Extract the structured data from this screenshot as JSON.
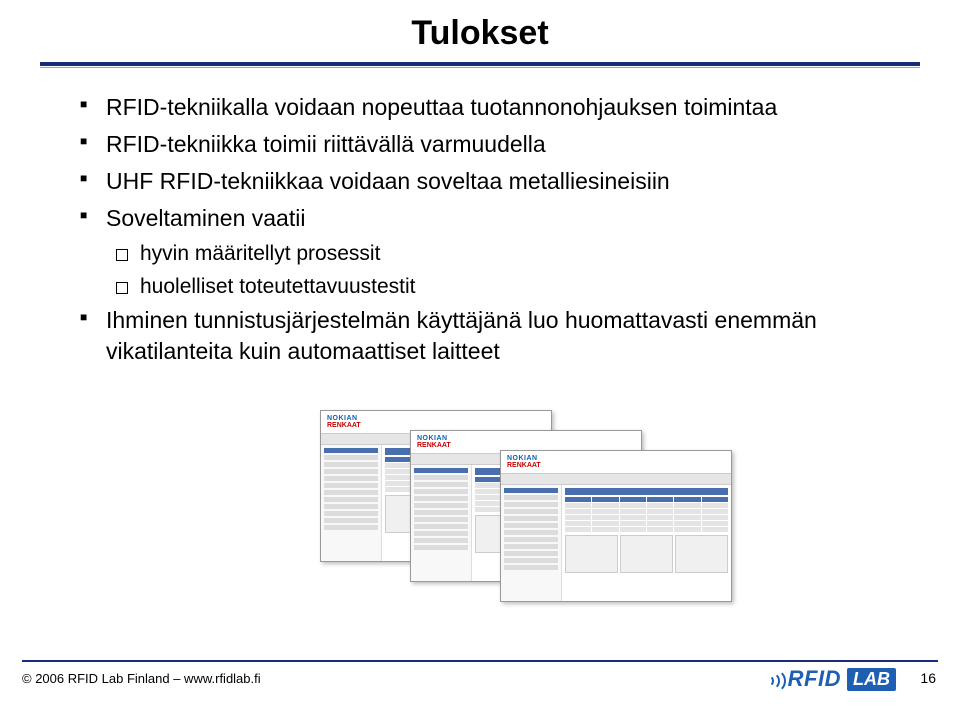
{
  "title": "Tulokset",
  "bullets": {
    "b1": "RFID-tekniikalla voidaan nopeuttaa tuotannonohjauksen toimintaa",
    "b2": "RFID-tekniikka toimii riittävällä varmuudella",
    "b3": "UHF RFID-tekniikkaa voidaan soveltaa metalliesineisiin",
    "b4": "Soveltaminen vaatii",
    "b4a": "hyvin määritellyt prosessit",
    "b4b": "huolelliset toteutettavuustestit",
    "b5": "Ihminen tunnistusjärjestelmän käyttäjänä luo huomattavasti enemmän vikatilanteita kuin automaattiset laitteet"
  },
  "thumb_logo": {
    "line1": "NOKIAN",
    "line2": "RENKAAT"
  },
  "footer": {
    "copyright": "© 2006 RFID Lab Finland – www.rfidlab.fi",
    "page": "16",
    "logo_rfid": "RFID",
    "logo_lab": "LAB"
  },
  "colors": {
    "rule": "#1c2a7a",
    "brand_blue": "#1e5fb3",
    "thumb_header_blue": "#4a6fae",
    "thumb_red": "#c00"
  }
}
